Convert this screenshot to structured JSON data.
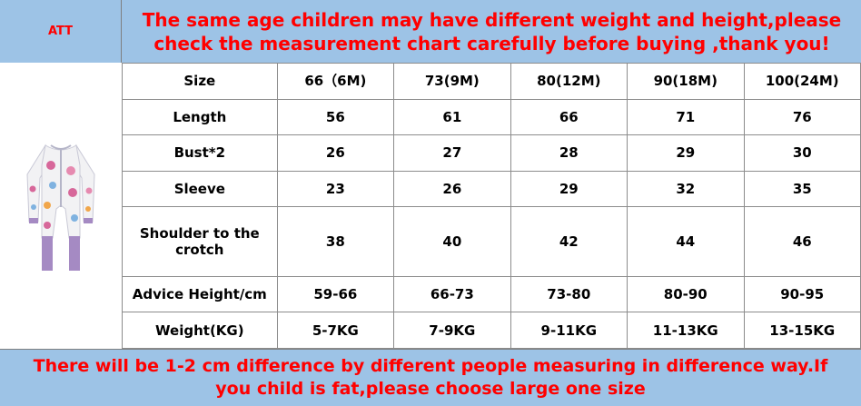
{
  "header": {
    "brand": "ATT",
    "notice": "The same age children may have different weight and height,please check the measurement chart carefully before buying ,thank you!"
  },
  "product_image": {
    "icon": "baby-romper-icon",
    "colors": {
      "body": "#f2f2f4",
      "print": "#d7679a",
      "cuff": "#a58ac3",
      "zip": "#b5b5c8"
    }
  },
  "size_chart": {
    "headers": [
      "Size",
      "66（6M)",
      "73(9M)",
      "80(12M)",
      "90(18M)",
      "100(24M)"
    ],
    "rows": [
      [
        "Length",
        "56",
        "61",
        "66",
        "71",
        "76"
      ],
      [
        "Bust*2",
        "26",
        "27",
        "28",
        "29",
        "30"
      ],
      [
        "Sleeve",
        "23",
        "26",
        "29",
        "32",
        "35"
      ],
      [
        "Shoulder to the crotch",
        "38",
        "40",
        "42",
        "44",
        "46"
      ],
      [
        "Advice Height/cm",
        "59-66",
        "66-73",
        "73-80",
        "80-90",
        "90-95"
      ],
      [
        "Weight(KG)",
        "5-7KG",
        "7-9KG",
        "9-11KG",
        "11-13KG",
        "13-15KG"
      ]
    ]
  },
  "footer": {
    "notice": "There will be 1-2 cm difference by different people measuring in difference way.If you child is fat,please choose large one size"
  },
  "colors": {
    "banner": "#9dc3e6",
    "alert_text": "#ff0000",
    "grid": "#8c8c8c"
  }
}
